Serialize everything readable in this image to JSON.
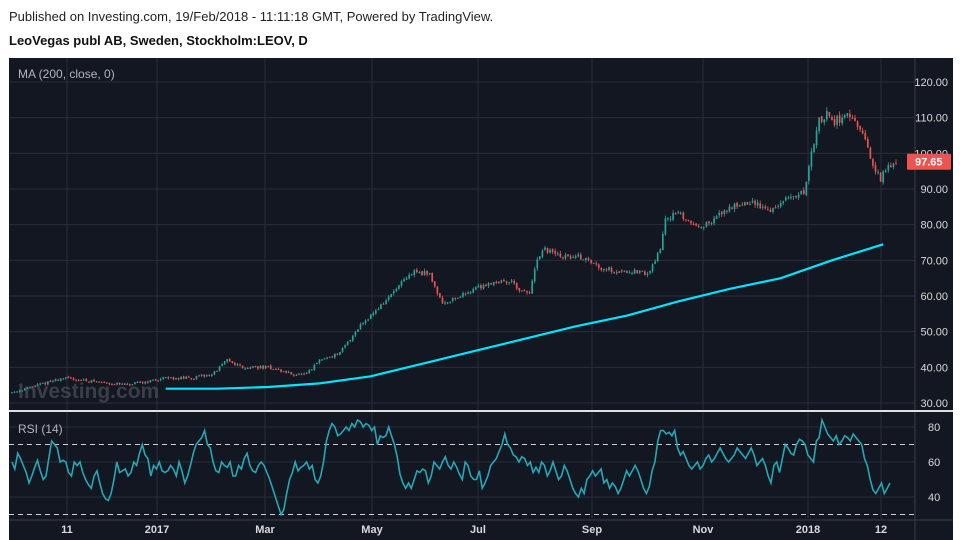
{
  "header": {
    "published": "Published on Investing.com, 19/Feb/2018 - 11:11:18 GMT, Powered by TradingView.",
    "title": "LeoVegas publ AB, Sweden, Stockholm:LEOV, D"
  },
  "watermark": "Investing.com",
  "colors": {
    "background": "#131722",
    "grid": "#2a2e39",
    "up": "#26a69a",
    "down": "#ef5350",
    "ma": "#00e5ff",
    "rsi": "#26a7b5",
    "axis_text": "#d9d9d9",
    "last_price_bg": "#ef5350"
  },
  "chart_data": [
    {
      "type": "candlestick",
      "indicator_label": "MA (200, close, 0)",
      "y_ticks": [
        "120.00",
        "110.00",
        "100.00",
        "90.00",
        "80.00",
        "70.00",
        "60.00",
        "50.00",
        "40.00",
        "30.00"
      ],
      "ylim": [
        27.5,
        122.5
      ],
      "last_price": "97.65",
      "price_path": [
        [
          0,
          33
        ],
        [
          20,
          37
        ],
        [
          45,
          35
        ],
        [
          60,
          37
        ],
        [
          70,
          37
        ],
        [
          78,
          38
        ],
        [
          84,
          42
        ],
        [
          90,
          40
        ],
        [
          100,
          40
        ],
        [
          110,
          38
        ],
        [
          115,
          38
        ],
        [
          120,
          42
        ],
        [
          128,
          44
        ],
        [
          136,
          52
        ],
        [
          145,
          58
        ],
        [
          150,
          62
        ],
        [
          157,
          67
        ],
        [
          163,
          66
        ],
        [
          168,
          58
        ],
        [
          175,
          60
        ],
        [
          180,
          62
        ],
        [
          188,
          64
        ],
        [
          196,
          64
        ],
        [
          198,
          61
        ],
        [
          202,
          61
        ],
        [
          205,
          70
        ],
        [
          208,
          73
        ],
        [
          215,
          71
        ],
        [
          222,
          71
        ],
        [
          230,
          68
        ],
        [
          236,
          67
        ],
        [
          242,
          67
        ],
        [
          248,
          66
        ],
        [
          253,
          73
        ],
        [
          255,
          82
        ],
        [
          260,
          83
        ],
        [
          266,
          80
        ],
        [
          272,
          80
        ],
        [
          278,
          84
        ],
        [
          284,
          86
        ],
        [
          290,
          86
        ],
        [
          296,
          84
        ],
        [
          300,
          86
        ],
        [
          305,
          88
        ],
        [
          309,
          89
        ],
        [
          312,
          100
        ],
        [
          315,
          109
        ],
        [
          318,
          111
        ],
        [
          321,
          109
        ],
        [
          326,
          111
        ],
        [
          330,
          107
        ],
        [
          333,
          104
        ],
        [
          336,
          96
        ],
        [
          339,
          93
        ],
        [
          342,
          96
        ],
        [
          345,
          98
        ]
      ],
      "ma_path": [
        [
          60,
          34
        ],
        [
          80,
          34
        ],
        [
          100,
          34.5
        ],
        [
          120,
          35.5
        ],
        [
          140,
          37.5
        ],
        [
          160,
          41
        ],
        [
          180,
          44.5
        ],
        [
          200,
          48
        ],
        [
          220,
          51.5
        ],
        [
          240,
          54.5
        ],
        [
          260,
          58.5
        ],
        [
          280,
          62
        ],
        [
          300,
          65
        ],
        [
          320,
          70
        ],
        [
          340,
          74.5
        ]
      ]
    },
    {
      "type": "line",
      "indicator_label": "RSI (14)",
      "y_ticks": [
        "80",
        "60",
        "40"
      ],
      "ylim": [
        28,
        88
      ],
      "levels": [
        70,
        30
      ],
      "series": [
        {
          "values": [
            60,
            56,
            65,
            62,
            58,
            54,
            48,
            52,
            57,
            61,
            55,
            50,
            52,
            62,
            72,
            70,
            68,
            60,
            61,
            60,
            54,
            52,
            60,
            58,
            60,
            54,
            50,
            47,
            45,
            52,
            55,
            48,
            42,
            39,
            38,
            42,
            50,
            60,
            54,
            55,
            56,
            52,
            54,
            60,
            58,
            65,
            70,
            64,
            62,
            52,
            58,
            56,
            60,
            55,
            54,
            55,
            58,
            56,
            52,
            60,
            55,
            48,
            52,
            58,
            65,
            70,
            72,
            74,
            78,
            70,
            68,
            60,
            55,
            54,
            60,
            58,
            57,
            60,
            52,
            52,
            58,
            56,
            62,
            65,
            58,
            55,
            54,
            58,
            60,
            58,
            54,
            50,
            45,
            40,
            35,
            30,
            33,
            42,
            50,
            54,
            60,
            55,
            57,
            58,
            60,
            56,
            58,
            50,
            48,
            52,
            60,
            72,
            78,
            82,
            80,
            75,
            76,
            78,
            80,
            78,
            82,
            80,
            84,
            83,
            80,
            82,
            81,
            78,
            80,
            70,
            75,
            74,
            75,
            80,
            75,
            70,
            63,
            53,
            48,
            45,
            48,
            45,
            50,
            55,
            54,
            56,
            55,
            48,
            52,
            60,
            58,
            56,
            60,
            63,
            58,
            56,
            60,
            57,
            53,
            50,
            60,
            58,
            52,
            50,
            50,
            55,
            45,
            48,
            52,
            58,
            60,
            62,
            66,
            70,
            76,
            70,
            68,
            64,
            63,
            60,
            63,
            62,
            58,
            60,
            54,
            57,
            54,
            60,
            58,
            52,
            55,
            60,
            55,
            50,
            52,
            58,
            55,
            50,
            45,
            42,
            40,
            45,
            42,
            50,
            52,
            55,
            52,
            54,
            56,
            48,
            50,
            45,
            48,
            46,
            42,
            45,
            50,
            55,
            52,
            55,
            58,
            55,
            50,
            45,
            42,
            46,
            55,
            60,
            72,
            78,
            78,
            76,
            77,
            75,
            78,
            68,
            64,
            66,
            62,
            58,
            56,
            58,
            60,
            56,
            58,
            62,
            64,
            60,
            62,
            65,
            68,
            65,
            62,
            60,
            62,
            64,
            68,
            66,
            64,
            62,
            65,
            68,
            64,
            58,
            60,
            62,
            58,
            52,
            48,
            58,
            60,
            54,
            62,
            70,
            68,
            65,
            64,
            70,
            73,
            72,
            70,
            64,
            62,
            60,
            72,
            74,
            84,
            80,
            76,
            74,
            72,
            75,
            70,
            72,
            75,
            74,
            72,
            76,
            74,
            72,
            70,
            62,
            58,
            50,
            44,
            42,
            45,
            48,
            42,
            45,
            48
          ]
        }
      ]
    }
  ],
  "x_axis": {
    "labels": [
      {
        "text": "11",
        "x": 67
      },
      {
        "text": "2017",
        "x": 157
      },
      {
        "text": "Mar",
        "x": 265
      },
      {
        "text": "May",
        "x": 372
      },
      {
        "text": "Jul",
        "x": 478
      },
      {
        "text": "Sep",
        "x": 592
      },
      {
        "text": "Nov",
        "x": 703
      },
      {
        "text": "2018",
        "x": 808
      },
      {
        "text": "12",
        "x": 881
      }
    ]
  }
}
